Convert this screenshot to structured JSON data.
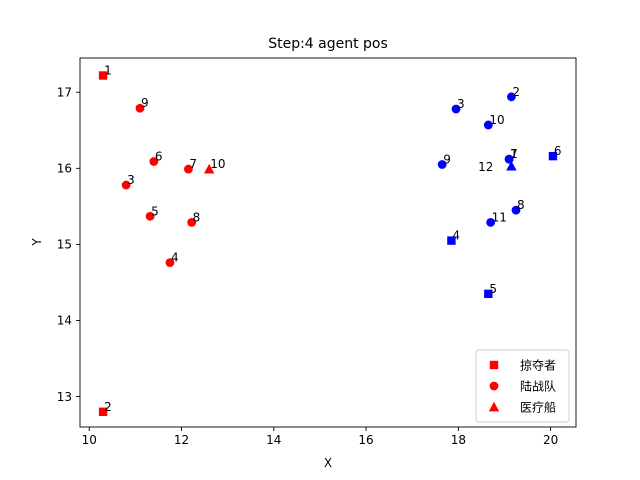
{
  "chart_data": {
    "type": "scatter",
    "title": "Step:4  agent pos",
    "xlabel": "X",
    "ylabel": "Y",
    "xlim": [
      9.8,
      20.55
    ],
    "ylim": [
      12.6,
      17.45
    ],
    "xticks": [
      10,
      12,
      14,
      16,
      18,
      20
    ],
    "yticks": [
      13,
      14,
      15,
      16,
      17
    ],
    "grid": false,
    "legend_position": "lower-right",
    "legend": [
      {
        "label": "掠夺者",
        "marker": "square",
        "color": "#ff0000"
      },
      {
        "label": "陆战队",
        "marker": "circle",
        "color": "#ff0000"
      },
      {
        "label": "医疗船",
        "marker": "triangle",
        "color": "#ff0000"
      }
    ],
    "points": [
      {
        "team": "red",
        "marker": "square",
        "color": "#ff0000",
        "x": 10.3,
        "y": 17.22,
        "label": "1"
      },
      {
        "team": "red",
        "marker": "square",
        "color": "#ff0000",
        "x": 10.3,
        "y": 12.8,
        "label": "2"
      },
      {
        "team": "red",
        "marker": "circle",
        "color": "#ff0000",
        "x": 10.8,
        "y": 15.78,
        "label": "3"
      },
      {
        "team": "red",
        "marker": "circle",
        "color": "#ff0000",
        "x": 11.75,
        "y": 14.76,
        "label": "4"
      },
      {
        "team": "red",
        "marker": "circle",
        "color": "#ff0000",
        "x": 11.32,
        "y": 15.37,
        "label": "5"
      },
      {
        "team": "red",
        "marker": "circle",
        "color": "#ff0000",
        "x": 11.4,
        "y": 16.09,
        "label": "6"
      },
      {
        "team": "red",
        "marker": "circle",
        "color": "#ff0000",
        "x": 12.15,
        "y": 15.99,
        "label": "7"
      },
      {
        "team": "red",
        "marker": "circle",
        "color": "#ff0000",
        "x": 12.22,
        "y": 15.29,
        "label": "8"
      },
      {
        "team": "red",
        "marker": "circle",
        "color": "#ff0000",
        "x": 11.1,
        "y": 16.79,
        "label": "9"
      },
      {
        "team": "red",
        "marker": "triangle",
        "color": "#ff0000",
        "x": 12.6,
        "y": 15.99,
        "label": "10"
      },
      {
        "team": "blue",
        "marker": "circle",
        "color": "#0000ff",
        "x": 19.1,
        "y": 16.12,
        "label": "1"
      },
      {
        "team": "blue",
        "marker": "circle",
        "color": "#0000ff",
        "x": 19.15,
        "y": 16.94,
        "label": "2"
      },
      {
        "team": "blue",
        "marker": "circle",
        "color": "#0000ff",
        "x": 17.95,
        "y": 16.78,
        "label": "3"
      },
      {
        "team": "blue",
        "marker": "square",
        "color": "#0000ff",
        "x": 17.85,
        "y": 15.05,
        "label": "4"
      },
      {
        "team": "blue",
        "marker": "square",
        "color": "#0000ff",
        "x": 18.65,
        "y": 14.35,
        "label": "5"
      },
      {
        "team": "blue",
        "marker": "square",
        "color": "#0000ff",
        "x": 20.05,
        "y": 16.16,
        "label": "6"
      },
      {
        "team": "blue",
        "marker": "circle",
        "color": "#0000ff",
        "x": 19.1,
        "y": 16.12,
        "label": "7"
      },
      {
        "team": "blue",
        "marker": "circle",
        "color": "#0000ff",
        "x": 19.25,
        "y": 15.45,
        "label": "8"
      },
      {
        "team": "blue",
        "marker": "circle",
        "color": "#0000ff",
        "x": 17.65,
        "y": 16.05,
        "label": "9"
      },
      {
        "team": "blue",
        "marker": "circle",
        "color": "#0000ff",
        "x": 18.65,
        "y": 16.57,
        "label": "10"
      },
      {
        "team": "blue",
        "marker": "circle",
        "color": "#0000ff",
        "x": 18.7,
        "y": 15.29,
        "label": "11"
      },
      {
        "team": "blue",
        "marker": "triangle",
        "color": "#0000ff",
        "x": 19.15,
        "y": 16.03,
        "label": "12",
        "label_side": "left"
      }
    ]
  }
}
